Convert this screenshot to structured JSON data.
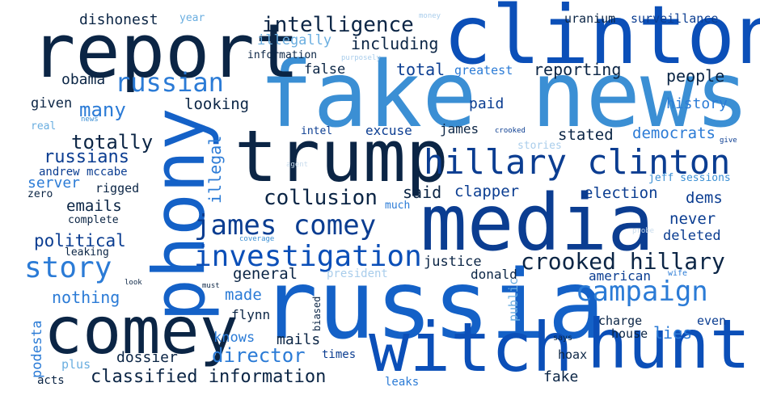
{
  "colors": {
    "background": "#ffffff",
    "navy": "#0b2545",
    "darkblue": "#0b3d91",
    "blue": "#1461c7",
    "mid": "#2b7bd6",
    "sky": "#3b8fd4",
    "light": "#6aaee0",
    "pale": "#a9cdeb",
    "faint": "#c9dced"
  },
  "words": [
    {
      "text": "fake news"
    },
    {
      "text": "clinton"
    },
    {
      "text": "report"
    },
    {
      "text": "trump"
    },
    {
      "text": "media"
    },
    {
      "text": "russia"
    },
    {
      "text": "phony"
    },
    {
      "text": "comey"
    },
    {
      "text": "witch"
    },
    {
      "text": "hunt"
    },
    {
      "text": "hillary clinton"
    },
    {
      "text": "james comey"
    },
    {
      "text": "investigation"
    },
    {
      "text": "crooked hillary"
    },
    {
      "text": "campaign"
    },
    {
      "text": "intelligence"
    },
    {
      "text": "russian"
    },
    {
      "text": "story"
    },
    {
      "text": "collusion"
    },
    {
      "text": "classified information"
    },
    {
      "text": "director"
    },
    {
      "text": "dishonest"
    },
    {
      "text": "year"
    },
    {
      "text": "money"
    },
    {
      "text": "uranium"
    },
    {
      "text": "surveillance"
    },
    {
      "text": "illegally"
    },
    {
      "text": "including"
    },
    {
      "text": "information"
    },
    {
      "text": "purposely"
    },
    {
      "text": "obama"
    },
    {
      "text": "false"
    },
    {
      "text": "total"
    },
    {
      "text": "greatest"
    },
    {
      "text": "reporting"
    },
    {
      "text": "people"
    },
    {
      "text": "many"
    },
    {
      "text": "given"
    },
    {
      "text": "looking"
    },
    {
      "text": "paid"
    },
    {
      "text": "history"
    },
    {
      "text": "real"
    },
    {
      "text": "news"
    },
    {
      "text": "intel"
    },
    {
      "text": "excuse"
    },
    {
      "text": "james"
    },
    {
      "text": "crooked"
    },
    {
      "text": "stated"
    },
    {
      "text": "democrats"
    },
    {
      "text": "give"
    },
    {
      "text": "totally"
    },
    {
      "text": "stories"
    },
    {
      "text": "russians"
    },
    {
      "text": "illegal"
    },
    {
      "text": "agent"
    },
    {
      "text": "andrew mccabe"
    },
    {
      "text": "server"
    },
    {
      "text": "jeff sessions"
    },
    {
      "text": "zero"
    },
    {
      "text": "rigged"
    },
    {
      "text": "said"
    },
    {
      "text": "clapper"
    },
    {
      "text": "election"
    },
    {
      "text": "dems"
    },
    {
      "text": "emails"
    },
    {
      "text": "much"
    },
    {
      "text": "complete"
    },
    {
      "text": "never"
    },
    {
      "text": "probe"
    },
    {
      "text": "political"
    },
    {
      "text": "coverage"
    },
    {
      "text": "deleted"
    },
    {
      "text": "leaking"
    },
    {
      "text": "justice"
    },
    {
      "text": "general"
    },
    {
      "text": "donald"
    },
    {
      "text": "president"
    },
    {
      "text": "american"
    },
    {
      "text": "wife"
    },
    {
      "text": "made"
    },
    {
      "text": "look"
    },
    {
      "text": "must"
    },
    {
      "text": "podesta"
    },
    {
      "text": "nothing"
    },
    {
      "text": "public"
    },
    {
      "text": "biased"
    },
    {
      "text": "flynn"
    },
    {
      "text": "charge"
    },
    {
      "text": "even"
    },
    {
      "text": "lies"
    },
    {
      "text": "house"
    },
    {
      "text": "knows"
    },
    {
      "text": "mails"
    },
    {
      "text": "says"
    },
    {
      "text": "dossier"
    },
    {
      "text": "times"
    },
    {
      "text": "hoax"
    },
    {
      "text": "plus"
    },
    {
      "text": "fake"
    },
    {
      "text": "acts"
    },
    {
      "text": "leaks"
    }
  ]
}
